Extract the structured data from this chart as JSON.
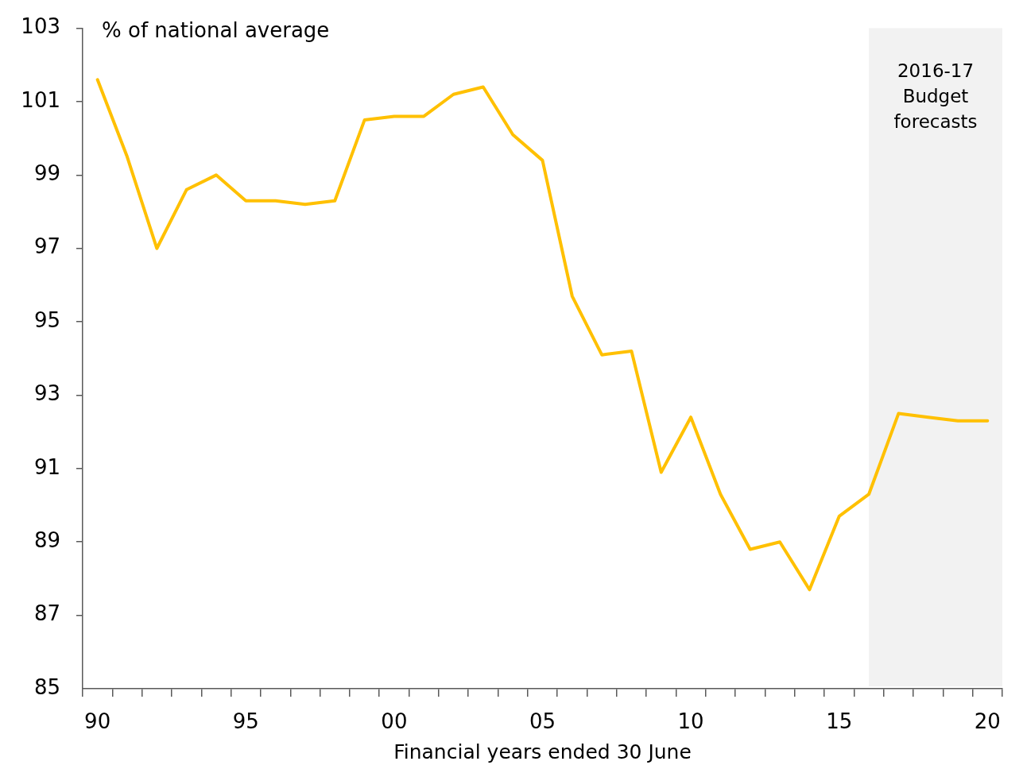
{
  "chart_data": {
    "type": "line",
    "ylabel": "% of national average",
    "xlabel": "Financial years ended 30 June",
    "x": [
      1990,
      1991,
      1992,
      1993,
      1994,
      1995,
      1996,
      1997,
      1998,
      1999,
      2000,
      2001,
      2002,
      2003,
      2004,
      2005,
      2006,
      2007,
      2008,
      2009,
      2010,
      2011,
      2012,
      2013,
      2014,
      2015,
      2016,
      2017,
      2018,
      2019,
      2020
    ],
    "series": [
      {
        "color": "#ffc000",
        "values": [
          101.6,
          99.5,
          97.0,
          98.6,
          99.0,
          98.3,
          98.3,
          98.2,
          98.3,
          100.5,
          100.6,
          100.6,
          101.2,
          101.4,
          100.1,
          99.4,
          95.7,
          94.1,
          94.2,
          90.9,
          92.4,
          90.3,
          88.8,
          89.0,
          87.7,
          89.7,
          90.3,
          92.5,
          92.4,
          92.3,
          92.3
        ]
      }
    ],
    "xlim": [
      1989.5,
      2020.5
    ],
    "xticks": [
      {
        "value": 1989.5,
        "label": null
      },
      {
        "value": 1990,
        "label": "90"
      },
      {
        "value": 1990.5,
        "label": null
      },
      {
        "value": 1991.5,
        "label": null
      },
      {
        "value": 1992.5,
        "label": null
      },
      {
        "value": 1993.5,
        "label": null
      },
      {
        "value": 1994.5,
        "label": null
      },
      {
        "value": 1995,
        "label": "95"
      },
      {
        "value": 1995.5,
        "label": null
      },
      {
        "value": 1996.5,
        "label": null
      },
      {
        "value": 1997.5,
        "label": null
      },
      {
        "value": 1998.5,
        "label": null
      },
      {
        "value": 1999.5,
        "label": null
      },
      {
        "value": 2000,
        "label": "00"
      },
      {
        "value": 2000.5,
        "label": null
      },
      {
        "value": 2001.5,
        "label": null
      },
      {
        "value": 2002.5,
        "label": null
      },
      {
        "value": 2003.5,
        "label": null
      },
      {
        "value": 2004.5,
        "label": null
      },
      {
        "value": 2005,
        "label": "05"
      },
      {
        "value": 2005.5,
        "label": null
      },
      {
        "value": 2006.5,
        "label": null
      },
      {
        "value": 2007.5,
        "label": null
      },
      {
        "value": 2008.5,
        "label": null
      },
      {
        "value": 2009.5,
        "label": null
      },
      {
        "value": 2010,
        "label": "10"
      },
      {
        "value": 2010.5,
        "label": null
      },
      {
        "value": 2011.5,
        "label": null
      },
      {
        "value": 2012.5,
        "label": null
      },
      {
        "value": 2013.5,
        "label": null
      },
      {
        "value": 2014.5,
        "label": null
      },
      {
        "value": 2015,
        "label": "15"
      },
      {
        "value": 2015.5,
        "label": null
      },
      {
        "value": 2016.5,
        "label": null
      },
      {
        "value": 2017.5,
        "label": null
      },
      {
        "value": 2018.5,
        "label": null
      },
      {
        "value": 2019.5,
        "label": null
      },
      {
        "value": 2020,
        "label": "20"
      },
      {
        "value": 2020.5,
        "label": null
      }
    ],
    "ylim": [
      85,
      103
    ],
    "yticks": [
      85,
      87,
      89,
      91,
      93,
      95,
      97,
      99,
      101,
      103
    ],
    "bands": [
      {
        "axis": "x",
        "from": 2016,
        "to": 2020.5,
        "label": "2016-17 Budget forecasts",
        "color": "#f2f2f2"
      }
    ]
  }
}
